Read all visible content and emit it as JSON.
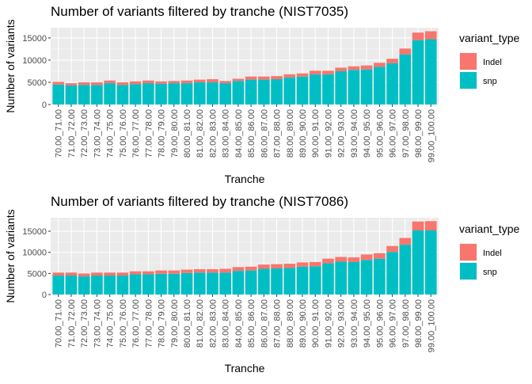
{
  "colors": {
    "indel": "#F8766D",
    "snp": "#00BFC4",
    "panel": "#EBEBEB",
    "grid_major": "#FFFFFF",
    "grid_minor": "#F7F7F7",
    "tick_text": "#4D4D4D"
  },
  "chart_data": [
    {
      "type": "bar",
      "stacked": true,
      "title": "Number of variants filtered by tranche (NIST7035)",
      "xlabel": "Tranche",
      "ylabel": "Number of variants",
      "ylim": [
        0,
        17300
      ],
      "yticks": [
        0,
        5000,
        10000,
        15000
      ],
      "grid": true,
      "legend_position": "right",
      "legend_title": "variant_type",
      "categories": [
        "70.00_71.00",
        "71.00_72.00",
        "72.00_73.00",
        "73.00_74.00",
        "74.00_75.00",
        "75.00_76.00",
        "76.00_77.00",
        "77.00_78.00",
        "78.00_79.00",
        "79.00_80.00",
        "80.00_81.00",
        "81.00_82.00",
        "82.00_83.00",
        "83.00_84.00",
        "84.00_85.00",
        "85.00_86.00",
        "86.00_87.00",
        "87.00_88.00",
        "88.00_89.00",
        "89.00_90.00",
        "90.00_91.00",
        "91.00_92.00",
        "92.00_93.00",
        "93.00_94.00",
        "94.00_95.00",
        "95.00_96.00",
        "96.00_97.00",
        "97.00_98.00",
        "98.00_99.00",
        "99.00_100.00"
      ],
      "series": [
        {
          "name": "Indel",
          "values": [
            600,
            500,
            600,
            600,
            600,
            600,
            600,
            600,
            500,
            500,
            600,
            600,
            700,
            500,
            500,
            700,
            700,
            700,
            700,
            700,
            800,
            800,
            800,
            800,
            900,
            900,
            1000,
            1300,
            1700,
            1800
          ]
        },
        {
          "name": "snp",
          "values": [
            4500,
            4300,
            4400,
            4400,
            4800,
            4400,
            4600,
            4800,
            4700,
            4800,
            4800,
            5000,
            5000,
            4800,
            5300,
            5600,
            5600,
            5700,
            6100,
            6300,
            6800,
            6800,
            7500,
            7800,
            7900,
            8500,
            9300,
            11300,
            14500,
            14700
          ]
        }
      ]
    },
    {
      "type": "bar",
      "stacked": true,
      "title": "Number of variants filtered by tranche (NIST7086)",
      "xlabel": "Tranche",
      "ylabel": "Number of variants",
      "ylim": [
        0,
        18200
      ],
      "yticks": [
        0,
        5000,
        10000,
        15000
      ],
      "grid": true,
      "legend_position": "right",
      "legend_title": "variant_type",
      "categories": [
        "70.00_71.00",
        "71.00_72.00",
        "72.00_73.00",
        "73.00_74.00",
        "74.00_75.00",
        "75.00_76.00",
        "76.00_77.00",
        "77.00_78.00",
        "78.00_79.00",
        "79.00_80.00",
        "80.00_81.00",
        "81.00_82.00",
        "82.00_83.00",
        "83.00_84.00",
        "84.00_85.00",
        "85.00_86.00",
        "86.00_87.00",
        "87.00_88.00",
        "88.00_89.00",
        "89.00_90.00",
        "90.00_91.00",
        "91.00_92.00",
        "92.00_93.00",
        "93.00_94.00",
        "94.00_95.00",
        "95.00_96.00",
        "96.00_97.00",
        "97.00_98.00",
        "98.00_99.00",
        "99.00_100.00"
      ],
      "series": [
        {
          "name": "Indel",
          "values": [
            700,
            700,
            700,
            700,
            700,
            700,
            700,
            700,
            800,
            800,
            800,
            800,
            800,
            900,
            900,
            900,
            1000,
            1000,
            1000,
            1000,
            1000,
            1100,
            1100,
            1100,
            1300,
            1300,
            1400,
            1600,
            2100,
            2200
          ]
        },
        {
          "name": "snp",
          "values": [
            4500,
            4500,
            4300,
            4500,
            4500,
            4500,
            4800,
            4800,
            4900,
            4900,
            5100,
            5200,
            5200,
            5200,
            5600,
            5700,
            6100,
            6200,
            6300,
            6600,
            6700,
            7400,
            7800,
            7700,
            8200,
            8500,
            10100,
            11800,
            15200,
            15200
          ]
        }
      ]
    }
  ]
}
